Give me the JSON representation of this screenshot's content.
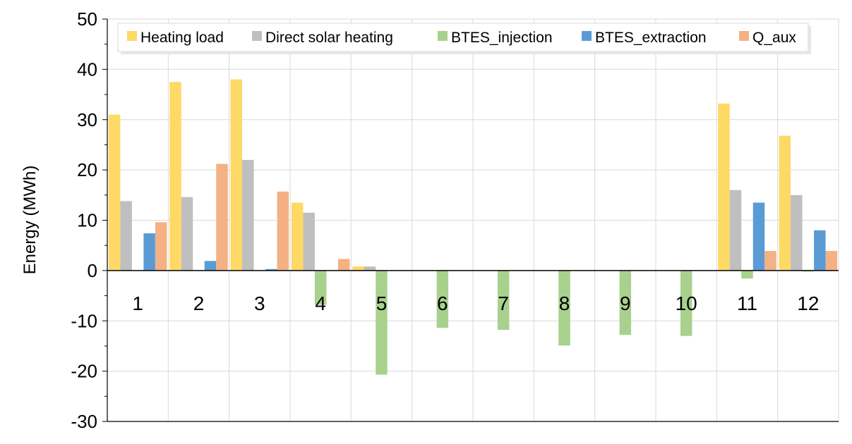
{
  "chart_data": {
    "type": "bar",
    "title": "",
    "xlabel": "",
    "ylabel": "Energy (MWh)",
    "ylim": [
      -30,
      50
    ],
    "yticks": [
      -30,
      -20,
      -10,
      0,
      10,
      20,
      30,
      40,
      50
    ],
    "ytick_labels": [
      "-30",
      "-20",
      "-10",
      "0",
      "10",
      "20",
      "30",
      "40",
      "50"
    ],
    "grid": true,
    "legend_position": "top",
    "categories": [
      "1",
      "2",
      "3",
      "4",
      "5",
      "6",
      "7",
      "8",
      "9",
      "10",
      "11",
      "12"
    ],
    "series": [
      {
        "name": "Heating load",
        "color": "#FFD966",
        "values": [
          31,
          37.5,
          38,
          13.5,
          0.8,
          0,
          0,
          0,
          0,
          0,
          33.2,
          26.8
        ]
      },
      {
        "name": "Direct solar heating",
        "color": "#BFBFBF",
        "values": [
          13.8,
          14.6,
          22,
          11.5,
          0.8,
          0,
          0,
          0,
          0,
          0,
          16,
          15
        ]
      },
      {
        "name": "BTES_injection",
        "color": "#A9D18E",
        "values": [
          0,
          0,
          0,
          -6.8,
          -20.7,
          -11.4,
          -11.8,
          -14.9,
          -12.8,
          -13,
          -1.6,
          -0.2
        ]
      },
      {
        "name": "BTES_extraction",
        "color": "#5B9BD5",
        "values": [
          7.4,
          1.9,
          0.3,
          0,
          0,
          0,
          0,
          0,
          0,
          0,
          13.5,
          8
        ]
      },
      {
        "name": "Q_aux",
        "color": "#F4B183",
        "values": [
          9.6,
          21.2,
          15.7,
          2.3,
          0,
          0,
          0,
          0,
          0,
          0,
          3.9,
          3.9
        ]
      }
    ]
  }
}
